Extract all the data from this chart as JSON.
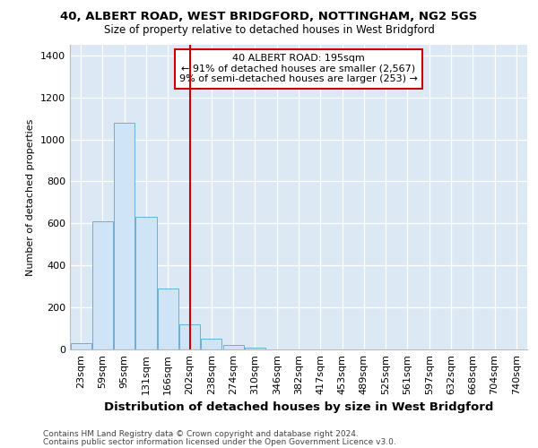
{
  "title1": "40, ALBERT ROAD, WEST BRIDGFORD, NOTTINGHAM, NG2 5GS",
  "title2": "Size of property relative to detached houses in West Bridgford",
  "xlabel": "Distribution of detached houses by size in West Bridgford",
  "ylabel": "Number of detached properties",
  "bar_color": "#d0e4f7",
  "bar_edge_color": "#6aaed6",
  "background_color": "#dce9f5",
  "categories": [
    "23sqm",
    "59sqm",
    "95sqm",
    "131sqm",
    "166sqm",
    "202sqm",
    "238sqm",
    "274sqm",
    "310sqm",
    "346sqm",
    "382sqm",
    "417sqm",
    "453sqm",
    "489sqm",
    "525sqm",
    "561sqm",
    "597sqm",
    "632sqm",
    "668sqm",
    "704sqm",
    "740sqm"
  ],
  "values": [
    30,
    610,
    1080,
    630,
    290,
    120,
    50,
    20,
    10,
    0,
    0,
    0,
    0,
    0,
    0,
    0,
    0,
    0,
    0,
    0,
    0
  ],
  "vline_x": 5.0,
  "vline_color": "#cc0000",
  "annotation_line1": "40 ALBERT ROAD: 195sqm",
  "annotation_line2": "← 91% of detached houses are smaller (2,567)",
  "annotation_line3": "9% of semi-detached houses are larger (253) →",
  "annotation_box_color": "#cc0000",
  "ylim": [
    0,
    1450
  ],
  "yticks": [
    0,
    200,
    400,
    600,
    800,
    1000,
    1200,
    1400
  ],
  "footer1": "Contains HM Land Registry data © Crown copyright and database right 2024.",
  "footer2": "Contains public sector information licensed under the Open Government Licence v3.0.",
  "title1_fontsize": 9.5,
  "title2_fontsize": 8.5,
  "ylabel_fontsize": 8,
  "xlabel_fontsize": 9.5,
  "tick_fontsize": 8,
  "annot_fontsize": 8,
  "footer_fontsize": 6.5
}
